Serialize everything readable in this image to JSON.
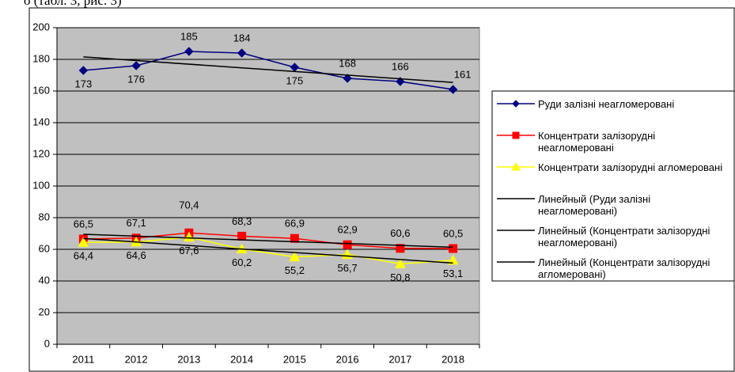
{
  "caption": "о (табл. 3, рис. 3)",
  "chart_data": {
    "type": "line",
    "categories": [
      "2011",
      "2012",
      "2013",
      "2014",
      "2015",
      "2016",
      "2017",
      "2018"
    ],
    "ylim": [
      0,
      200
    ],
    "yticks": [
      0,
      20,
      40,
      60,
      80,
      100,
      120,
      140,
      160,
      180,
      200
    ],
    "grid": true,
    "legend": "right",
    "plot_color": "#c0c0c0",
    "trend_color": "#000000",
    "series": [
      {
        "name": "Руди залізні неагломеровані",
        "color": "#000080",
        "marker": "diamond",
        "values": [
          173,
          176,
          185,
          184,
          175,
          168,
          166,
          161
        ],
        "trendline": true,
        "trend_name": "Линейный (Руди залізні неагломеровані)"
      },
      {
        "name": "Концентрати залізорудні неагломеровані",
        "color": "#ff0000",
        "marker": "square",
        "values": [
          66.5,
          67.1,
          70.4,
          68.3,
          66.9,
          62.9,
          60.6,
          60.5
        ],
        "value_labels": [
          "66,5",
          "67,1",
          "70,4",
          "68,3",
          "66,9",
          "62,9",
          "60,6",
          "60,5"
        ],
        "trendline": true,
        "trend_name": "Линейный (Концентрати залізорудні неагломеровані)"
      },
      {
        "name": "Концентрати залізорудні агломеровані",
        "color": "#ffff00",
        "marker": "triangle",
        "values": [
          64.4,
          64.6,
          67.6,
          60.2,
          55.2,
          56.7,
          50.8,
          53.1
        ],
        "value_labels": [
          "64,4",
          "64,6",
          "67,6",
          "60,2",
          "55,2",
          "56,7",
          "50,8",
          "53,1"
        ],
        "trendline": true,
        "trend_name": "Линейный (Концентрати залізорудні агломеровані)"
      }
    ]
  }
}
